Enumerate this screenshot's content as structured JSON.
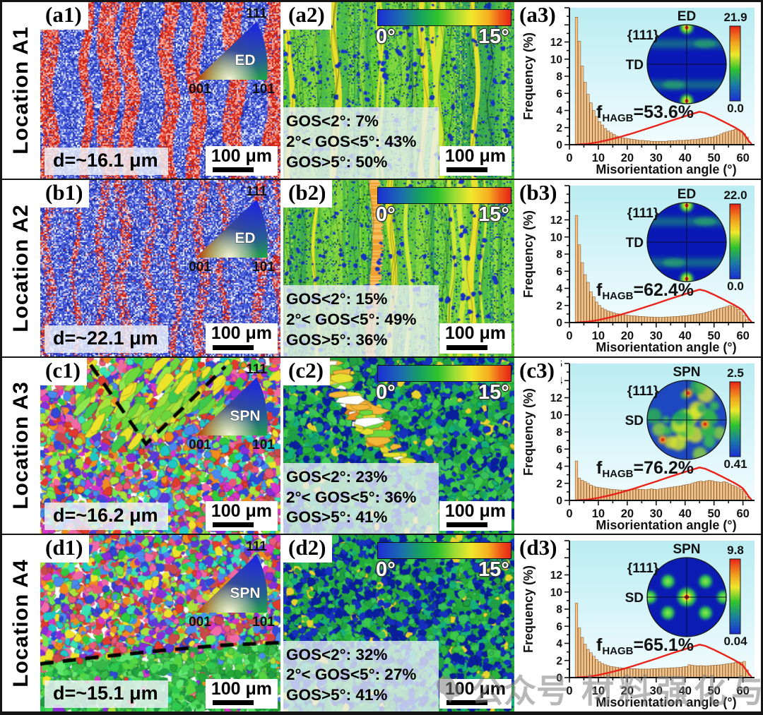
{
  "watermark": {
    "part1": "公众号",
    "part2": "材料强化与防护"
  },
  "colors": {
    "bar_fill": "#f2c38d",
    "bar_stroke": "#8a5a28",
    "curve": "#e8231a",
    "plot_bg_top": "#b9ecf2",
    "plot_bg_bottom": "#f2fcfe",
    "pf_bg_blue": "#0a18b6",
    "accent_black": "#151515"
  },
  "rows": [
    {
      "location": "Location A1",
      "ipf": {
        "tag": "(a1)",
        "ref_label": "ED",
        "tri_top": "111",
        "tri_bl": "001",
        "tri_br": "101",
        "grain_size": "d=~16.1 μm",
        "scale_label": "100 μm",
        "map_style": "bands-a"
      },
      "gos": {
        "tag": "(a2)",
        "stats": [
          "GOS<2°: 7%",
          "2°< GOS<5°: 43%",
          "GOS>5°: 50%"
        ],
        "colorbar_min": "0°",
        "colorbar_max": "15°",
        "scale_label": "100 μm",
        "map_style": "streaks-a"
      },
      "hist": {
        "tag": "(a3)",
        "fhagb": {
          "prefix": "f",
          "sub": "HAGB",
          "value": "=53.6%"
        },
        "pole": {
          "plane": "{111}",
          "top": "ED",
          "left": "TD",
          "max": "21.9",
          "min": "0.0",
          "style": "ed-bands"
        }
      }
    },
    {
      "location": "Location A2",
      "ipf": {
        "tag": "(b1)",
        "ref_label": "ED",
        "tri_top": "111",
        "tri_bl": "001",
        "tri_br": "101",
        "grain_size": "d=~22.1 μm",
        "scale_label": "100 μm",
        "map_style": "bands-b"
      },
      "gos": {
        "tag": "(b2)",
        "stats": [
          "GOS<2°: 15%",
          "2°< GOS<5°: 49%",
          "GOS>5°: 36%"
        ],
        "colorbar_min": "0°",
        "colorbar_max": "15°",
        "scale_label": "100 μm",
        "map_style": "streaks-b"
      },
      "hist": {
        "tag": "(b3)",
        "fhagb": {
          "prefix": "f",
          "sub": "HAGB",
          "value": "=62.4%"
        },
        "pole": {
          "plane": "{111}",
          "top": "ED",
          "left": "TD",
          "max": "22.0",
          "min": "0.0",
          "style": "ed-bands"
        }
      }
    },
    {
      "location": "Location A3",
      "ipf": {
        "tag": "(c1)",
        "ref_label": "SPN",
        "tri_top": "111",
        "tri_bl": "001",
        "tri_br": "101",
        "grain_size": "d=~16.2 μm",
        "scale_label": "100 μm",
        "map_style": "grains-c",
        "dash": [
          [
            0.21,
            0.04
          ],
          [
            0.44,
            0.49
          ],
          [
            0.77,
            0.05
          ]
        ]
      },
      "gos": {
        "tag": "(c2)",
        "stats": [
          "GOS<2°: 23%",
          "2°< GOS<5°: 36%",
          "GOS>5°: 41%"
        ],
        "colorbar_min": "0°",
        "colorbar_max": "15°",
        "scale_label": "100 μm",
        "map_style": "mottled-c"
      },
      "hist": {
        "tag": "(c3)",
        "fhagb": {
          "prefix": "f",
          "sub": "HAGB",
          "value": "=76.2%"
        },
        "pole": {
          "plane": "{111}",
          "top": "SPN",
          "left": "SD",
          "max": "2.5",
          "min": "0.41",
          "style": "mottled"
        }
      }
    },
    {
      "location": "Location A4",
      "ipf": {
        "tag": "(d1)",
        "ref_label": "SPN",
        "tri_top": "111",
        "tri_bl": "001",
        "tri_br": "101",
        "grain_size": "d=~15.1 μm",
        "scale_label": "100 μm",
        "map_style": "grains-d",
        "dash": [
          [
            0.0,
            0.73
          ],
          [
            0.25,
            0.69
          ],
          [
            0.5,
            0.655
          ],
          [
            0.75,
            0.625
          ],
          [
            1.0,
            0.61
          ]
        ]
      },
      "gos": {
        "tag": "(d2)",
        "stats": [
          "GOS<2°: 32%",
          "2°< GOS<5°: 27%",
          "GOS>5°: 41%"
        ],
        "colorbar_min": "0°",
        "colorbar_max": "15°",
        "scale_label": "100 μm",
        "map_style": "mottled-d"
      },
      "hist": {
        "tag": "(d3)",
        "fhagb": {
          "prefix": "f",
          "sub": "HAGB",
          "value": "=65.1%"
        },
        "pole": {
          "plane": "{111}",
          "top": "SPN",
          "left": "SD",
          "max": "9.8",
          "min": "0.04",
          "style": "cube"
        }
      }
    }
  ],
  "chart_data": [
    {
      "type": "bar",
      "title": "(a3) misorientation distribution",
      "xlabel": "Misorientation angle (°)",
      "ylabel": "Frequency (%)",
      "xlim": [
        0,
        64
      ],
      "ylim": [
        0,
        16
      ],
      "x_ticks": [
        0,
        10,
        20,
        30,
        40,
        50,
        60
      ],
      "y_ticks": [
        0,
        2,
        4,
        6,
        8,
        10,
        12,
        14,
        16
      ],
      "bar_start": 2,
      "bar_step": 1,
      "values": [
        14.9,
        12.1,
        9.2,
        7.3,
        5.9,
        4.9,
        4.0,
        3.3,
        2.7,
        2.3,
        1.9,
        1.6,
        1.4,
        1.2,
        1.0,
        0.9,
        0.8,
        0.75,
        0.7,
        0.65,
        0.6,
        0.55,
        0.5,
        0.5,
        0.45,
        0.45,
        0.4,
        0.4,
        0.4,
        0.4,
        0.4,
        0.4,
        0.45,
        0.45,
        0.45,
        0.5,
        0.5,
        0.5,
        0.55,
        0.55,
        0.6,
        0.6,
        0.65,
        0.7,
        0.75,
        0.8,
        0.85,
        0.9,
        1.0,
        1.1,
        1.25,
        1.4,
        1.5,
        1.6,
        1.7,
        1.8,
        1.75,
        1.6,
        1.3,
        0.9
      ],
      "curve": [
        [
          2,
          0
        ],
        [
          6,
          0.08
        ],
        [
          10,
          0.3
        ],
        [
          14,
          0.6
        ],
        [
          18,
          0.95
        ],
        [
          22,
          1.35
        ],
        [
          26,
          1.78
        ],
        [
          30,
          2.22
        ],
        [
          34,
          2.68
        ],
        [
          38,
          3.12
        ],
        [
          42,
          3.55
        ],
        [
          45,
          3.85
        ],
        [
          47,
          3.7
        ],
        [
          50,
          3.25
        ],
        [
          53,
          2.75
        ],
        [
          55,
          2.4
        ],
        [
          57,
          2.05
        ],
        [
          59,
          1.65
        ],
        [
          60,
          1.4
        ],
        [
          61,
          0.95
        ],
        [
          62,
          0.45
        ],
        [
          63,
          0.05
        ]
      ]
    },
    {
      "type": "bar",
      "title": "(b3) misorientation distribution",
      "xlabel": "Misorientation angle (°)",
      "ylabel": "Frequency (%)",
      "xlim": [
        0,
        64
      ],
      "ylim": [
        0,
        16
      ],
      "x_ticks": [
        0,
        10,
        20,
        30,
        40,
        50,
        60
      ],
      "y_ticks": [
        0,
        2,
        4,
        6,
        8,
        10,
        12,
        14,
        16
      ],
      "bar_start": 2,
      "bar_step": 1,
      "values": [
        12.5,
        9.1,
        7.0,
        5.6,
        4.7,
        3.6,
        3.0,
        2.4,
        2.0,
        1.7,
        1.5,
        1.35,
        1.25,
        1.15,
        1.05,
        1.0,
        0.95,
        0.9,
        0.85,
        0.8,
        0.78,
        0.75,
        0.72,
        0.7,
        0.68,
        0.65,
        0.65,
        0.62,
        0.62,
        0.6,
        0.62,
        0.65,
        0.65,
        0.68,
        0.7,
        0.72,
        0.75,
        0.78,
        0.8,
        0.85,
        0.9,
        0.95,
        1.0,
        1.05,
        1.1,
        1.2,
        1.3,
        1.4,
        1.5,
        1.6,
        1.7,
        1.8,
        1.9,
        2.0,
        1.95,
        1.8,
        1.55,
        1.25,
        0.85,
        0.35
      ],
      "curve": [
        [
          2,
          0
        ],
        [
          6,
          0.08
        ],
        [
          10,
          0.3
        ],
        [
          14,
          0.6
        ],
        [
          18,
          0.95
        ],
        [
          22,
          1.35
        ],
        [
          26,
          1.78
        ],
        [
          30,
          2.22
        ],
        [
          34,
          2.68
        ],
        [
          38,
          3.12
        ],
        [
          42,
          3.55
        ],
        [
          45,
          3.85
        ],
        [
          47,
          3.7
        ],
        [
          50,
          3.25
        ],
        [
          53,
          2.75
        ],
        [
          55,
          2.4
        ],
        [
          57,
          2.05
        ],
        [
          59,
          1.65
        ],
        [
          60,
          1.4
        ],
        [
          61,
          0.95
        ],
        [
          62,
          0.45
        ],
        [
          63,
          0.05
        ]
      ]
    },
    {
      "type": "bar",
      "title": "(c3) misorientation distribution",
      "xlabel": "Misorientation angle (°)",
      "ylabel": "Frequency (%)",
      "xlim": [
        0,
        64
      ],
      "ylim": [
        0,
        16
      ],
      "x_ticks": [
        0,
        10,
        20,
        30,
        40,
        50,
        60
      ],
      "y_ticks": [
        0,
        2,
        4,
        6,
        8,
        10,
        12,
        14,
        16
      ],
      "bar_start": 2,
      "bar_step": 1,
      "values": [
        4.6,
        2.6,
        2.35,
        2.2,
        2.0,
        1.8,
        1.65,
        1.55,
        1.5,
        1.45,
        1.4,
        1.35,
        1.3,
        1.28,
        1.25,
        1.22,
        1.2,
        1.22,
        1.25,
        1.28,
        1.3,
        1.32,
        1.3,
        1.28,
        1.25,
        1.3,
        1.35,
        1.3,
        1.25,
        1.35,
        1.4,
        1.45,
        1.5,
        1.55,
        1.6,
        1.65,
        1.7,
        1.78,
        1.85,
        1.9,
        2.0,
        2.1,
        2.2,
        2.25,
        2.2,
        2.3,
        2.35,
        2.3,
        2.2,
        2.15,
        2.1,
        2.2,
        2.1,
        1.95,
        1.8,
        1.65,
        1.5,
        1.3,
        1.1,
        0.45
      ],
      "curve": [
        [
          2,
          0
        ],
        [
          6,
          0.08
        ],
        [
          10,
          0.3
        ],
        [
          14,
          0.6
        ],
        [
          18,
          0.95
        ],
        [
          22,
          1.35
        ],
        [
          26,
          1.78
        ],
        [
          30,
          2.22
        ],
        [
          34,
          2.68
        ],
        [
          38,
          3.12
        ],
        [
          42,
          3.55
        ],
        [
          45,
          3.85
        ],
        [
          47,
          3.7
        ],
        [
          50,
          3.25
        ],
        [
          53,
          2.75
        ],
        [
          55,
          2.4
        ],
        [
          57,
          2.05
        ],
        [
          59,
          1.65
        ],
        [
          60,
          1.4
        ],
        [
          61,
          0.95
        ],
        [
          62,
          0.45
        ],
        [
          63,
          0.05
        ]
      ]
    },
    {
      "type": "bar",
      "title": "(d3) misorientation distribution",
      "xlabel": "Misorientation angle (°)",
      "ylabel": "Frequency (%)",
      "xlim": [
        0,
        64
      ],
      "ylim": [
        0,
        16
      ],
      "x_ticks": [
        0,
        10,
        20,
        30,
        40,
        50,
        60
      ],
      "y_ticks": [
        0,
        2,
        4,
        6,
        8,
        10,
        12,
        14,
        16
      ],
      "bar_start": 2,
      "bar_step": 1,
      "values": [
        8.7,
        5.8,
        4.7,
        3.9,
        3.3,
        2.9,
        2.5,
        2.1,
        1.85,
        1.65,
        1.5,
        1.4,
        1.3,
        1.25,
        1.2,
        1.15,
        1.12,
        1.1,
        1.08,
        1.05,
        1.05,
        1.02,
        1.0,
        1.0,
        1.0,
        1.0,
        1.02,
        1.05,
        1.05,
        1.08,
        1.1,
        1.1,
        1.12,
        1.15,
        1.15,
        1.18,
        1.2,
        1.25,
        1.3,
        1.5,
        1.45,
        1.4,
        1.38,
        1.4,
        1.38,
        1.35,
        1.4,
        1.42,
        1.45,
        1.48,
        1.5,
        1.55,
        1.6,
        1.65,
        1.7,
        1.78,
        1.85,
        1.8,
        1.9,
        0.9
      ],
      "curve": [
        [
          2,
          0
        ],
        [
          6,
          0.08
        ],
        [
          10,
          0.3
        ],
        [
          14,
          0.6
        ],
        [
          18,
          0.95
        ],
        [
          22,
          1.35
        ],
        [
          26,
          1.78
        ],
        [
          30,
          2.22
        ],
        [
          34,
          2.68
        ],
        [
          38,
          3.12
        ],
        [
          42,
          3.55
        ],
        [
          45,
          3.85
        ],
        [
          47,
          3.7
        ],
        [
          50,
          3.25
        ],
        [
          53,
          2.75
        ],
        [
          55,
          2.4
        ],
        [
          57,
          2.05
        ],
        [
          59,
          1.65
        ],
        [
          60,
          1.4
        ],
        [
          61,
          0.95
        ],
        [
          62,
          0.45
        ],
        [
          63,
          0.05
        ]
      ]
    }
  ]
}
